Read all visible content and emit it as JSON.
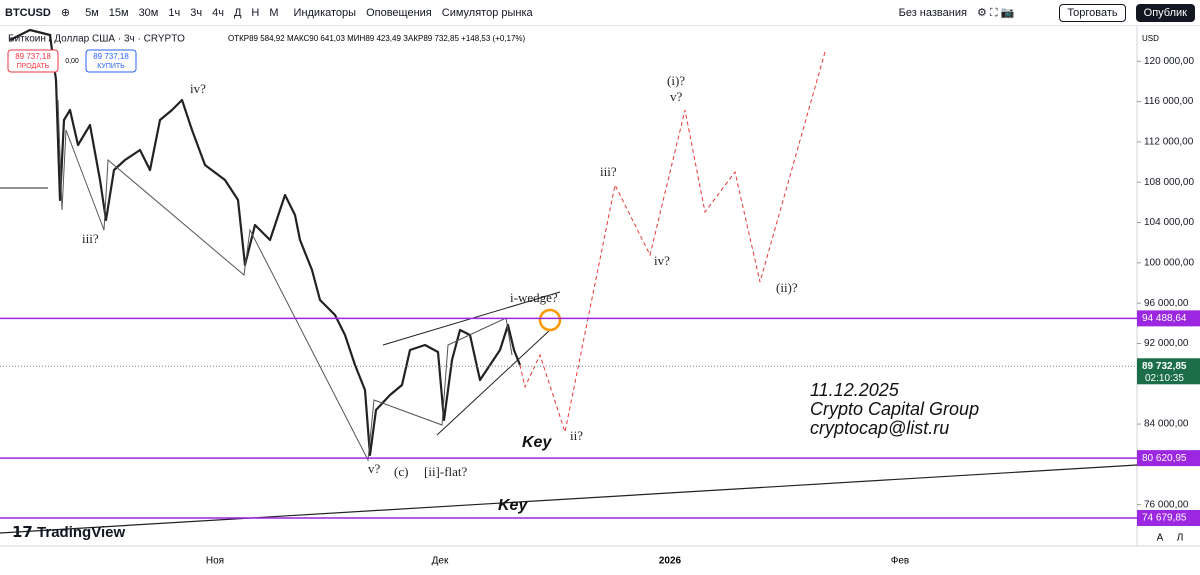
{
  "toolbar": {
    "symbol": "BTCUSD",
    "intervals": [
      "5м",
      "15м",
      "30м",
      "1ч",
      "3ч",
      "4ч",
      "Д",
      "Н",
      "М"
    ],
    "indicators": "Индикаторы",
    "alerts": "Оповещения",
    "replay": "Симулятор рынка",
    "layout_name": "Без названия",
    "trade": "Торговать",
    "publish": "Опублик"
  },
  "legend": {
    "title": "Биткоин / Доллар США · 3ч · CRYPTO",
    "open_label": "ОТКР",
    "open": "89 584,92",
    "high_label": "МАКС",
    "high": "90 641,03",
    "low_label": "МИН",
    "low": "89 423,49",
    "close_label": "ЗАКР",
    "close": "89 732,85",
    "change": "+148,53 (+0,17%)"
  },
  "order_buttons": {
    "sell_price": "89 737,18",
    "sell": "ПРОДАТЬ",
    "spread": "0,00",
    "buy_price": "89 737,18",
    "buy": "КУПИТЬ"
  },
  "price_axis": {
    "currency": "USD",
    "ylim": [
      72000,
      123600
    ],
    "ticks": [
      {
        "value": 120000,
        "label": "120 000,00"
      },
      {
        "value": 116000,
        "label": "116 000,00"
      },
      {
        "value": 112000,
        "label": "112 000,00"
      },
      {
        "value": 108000,
        "label": "108 000,00"
      },
      {
        "value": 104000,
        "label": "104 000,00"
      },
      {
        "value": 100000,
        "label": "100 000,00"
      },
      {
        "value": 96000,
        "label": "96 000,00"
      },
      {
        "value": 92000,
        "label": "92 000,00"
      },
      {
        "value": 84000,
        "label": "84 000,00"
      },
      {
        "value": 76000,
        "label": "76 000,00"
      }
    ]
  },
  "levels": [
    {
      "value": 94488.64,
      "label": "94 488,64"
    },
    {
      "value": 80620.95,
      "label": "80 620,95"
    },
    {
      "value": 74679.85,
      "label": "74 679,85"
    }
  ],
  "current_price": {
    "value": 89732.85,
    "label": "89 732,85",
    "countdown": "02:10:35"
  },
  "time_axis": [
    "Ноя",
    "Дек",
    "2026",
    "Фев"
  ],
  "annotations": [
    "iv?",
    "iii?",
    "v?",
    "(c)",
    "[ii]-flat?",
    "i-wedge?",
    "iii?",
    "iv?",
    "(i)?",
    "v?",
    "(ii)?",
    "ii?",
    "Key",
    "Key"
  ],
  "signature": [
    "11.12.2025",
    "Crypto Capital Group",
    "cryptocap@list.ru"
  ],
  "logo": "TradingView",
  "footer_buttons": [
    "A",
    "Л"
  ]
}
